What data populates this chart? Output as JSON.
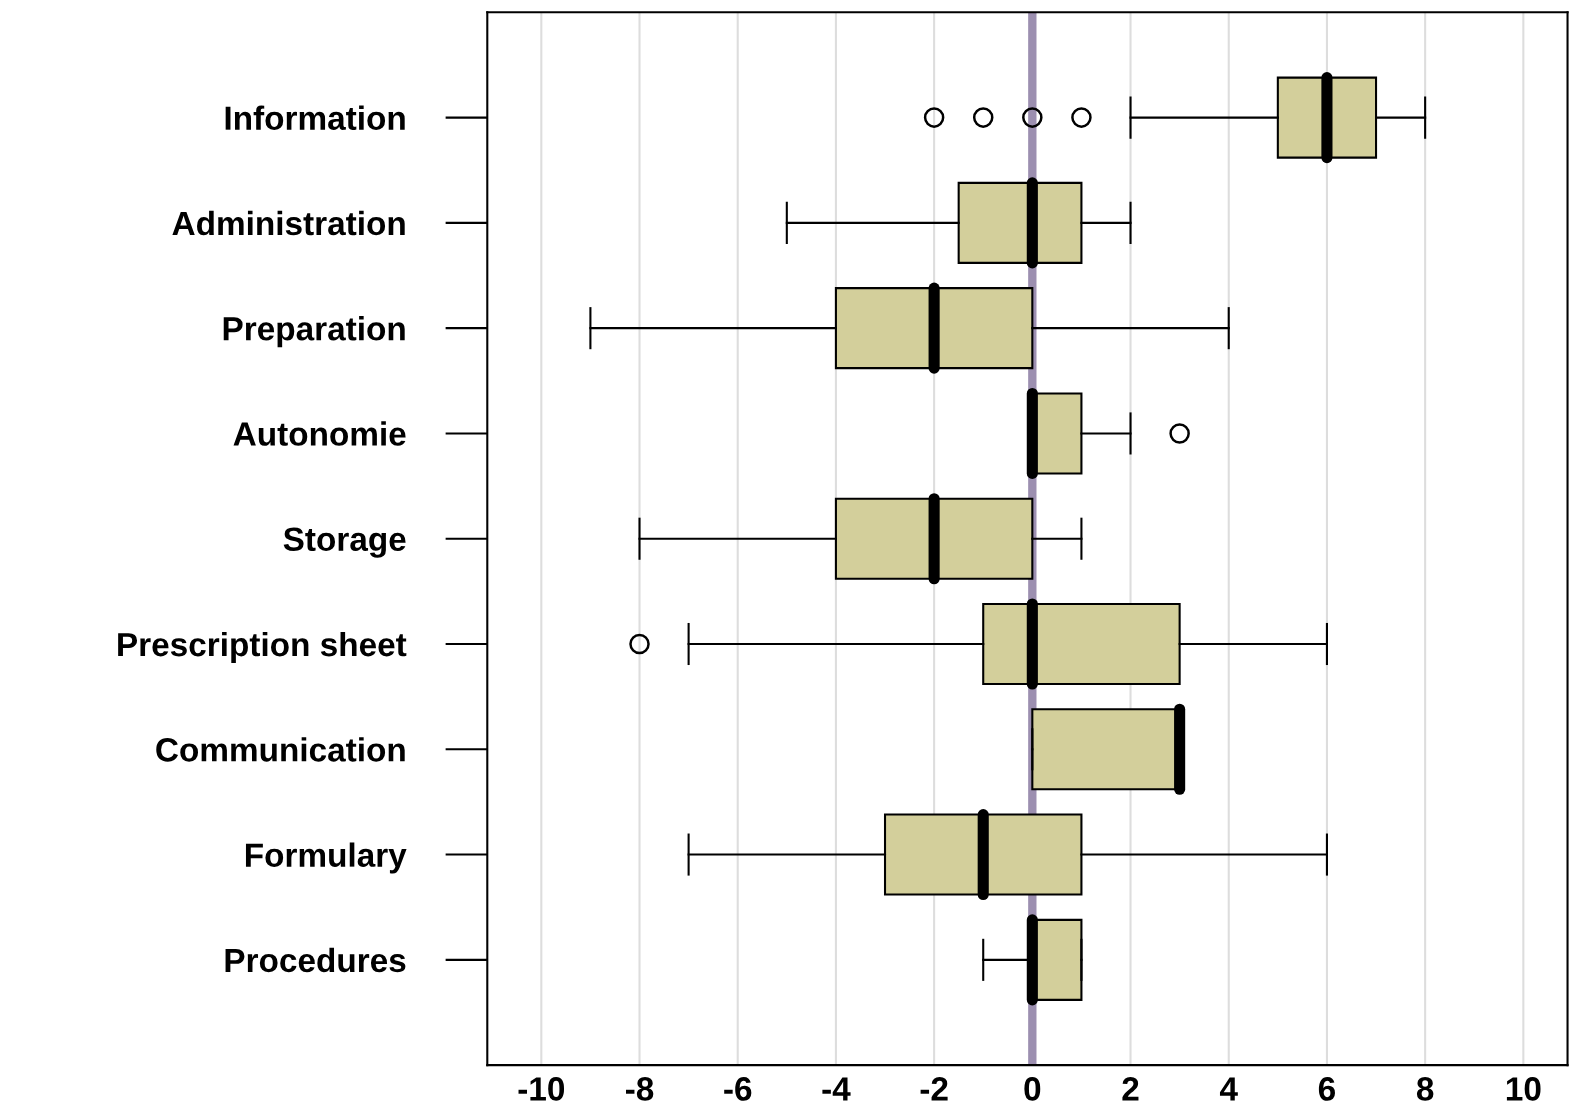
{
  "chart_data": {
    "type": "box",
    "orientation": "horizontal",
    "categories": [
      "Information",
      "Administration",
      "Preparation",
      "Autonomie",
      "Storage",
      "Prescription sheet",
      "Communication",
      "Formulary",
      "Procedures"
    ],
    "boxes": [
      {
        "low": 2,
        "q1": 5,
        "median": 6,
        "q3": 7,
        "high": 8,
        "outliers": [
          -2,
          -1,
          0,
          1
        ]
      },
      {
        "low": -5,
        "q1": -1.5,
        "median": 0,
        "q3": 1,
        "high": 2
      },
      {
        "low": -9,
        "q1": -4,
        "median": -2,
        "q3": 0,
        "high": 4
      },
      {
        "low": 0,
        "q1": 0,
        "median": 0,
        "q3": 1,
        "high": 2,
        "outliers": [
          3
        ]
      },
      {
        "low": -8,
        "q1": -4,
        "median": -2,
        "q3": 0,
        "high": 1
      },
      {
        "low": -7,
        "q1": -1,
        "median": 0,
        "q3": 3,
        "high": 6,
        "outliers": [
          -8
        ]
      },
      {
        "low": 0,
        "q1": 0,
        "median": 3,
        "q3": 3,
        "high": 3
      },
      {
        "low": -7,
        "q1": -3,
        "median": -1,
        "q3": 1,
        "high": 6
      },
      {
        "low": -1,
        "q1": 0,
        "median": 0,
        "q3": 1,
        "high": 1
      }
    ],
    "color": "#d3cf9b",
    "xlim": [
      -11.1,
      10.9
    ],
    "xticks": [
      -10,
      -8,
      -6,
      -4,
      -2,
      0,
      2,
      4,
      6,
      8,
      10
    ],
    "ref_lines": [
      {
        "axis": "x",
        "value": 0,
        "color": "#9c8fb0"
      }
    ],
    "grid": "x"
  }
}
